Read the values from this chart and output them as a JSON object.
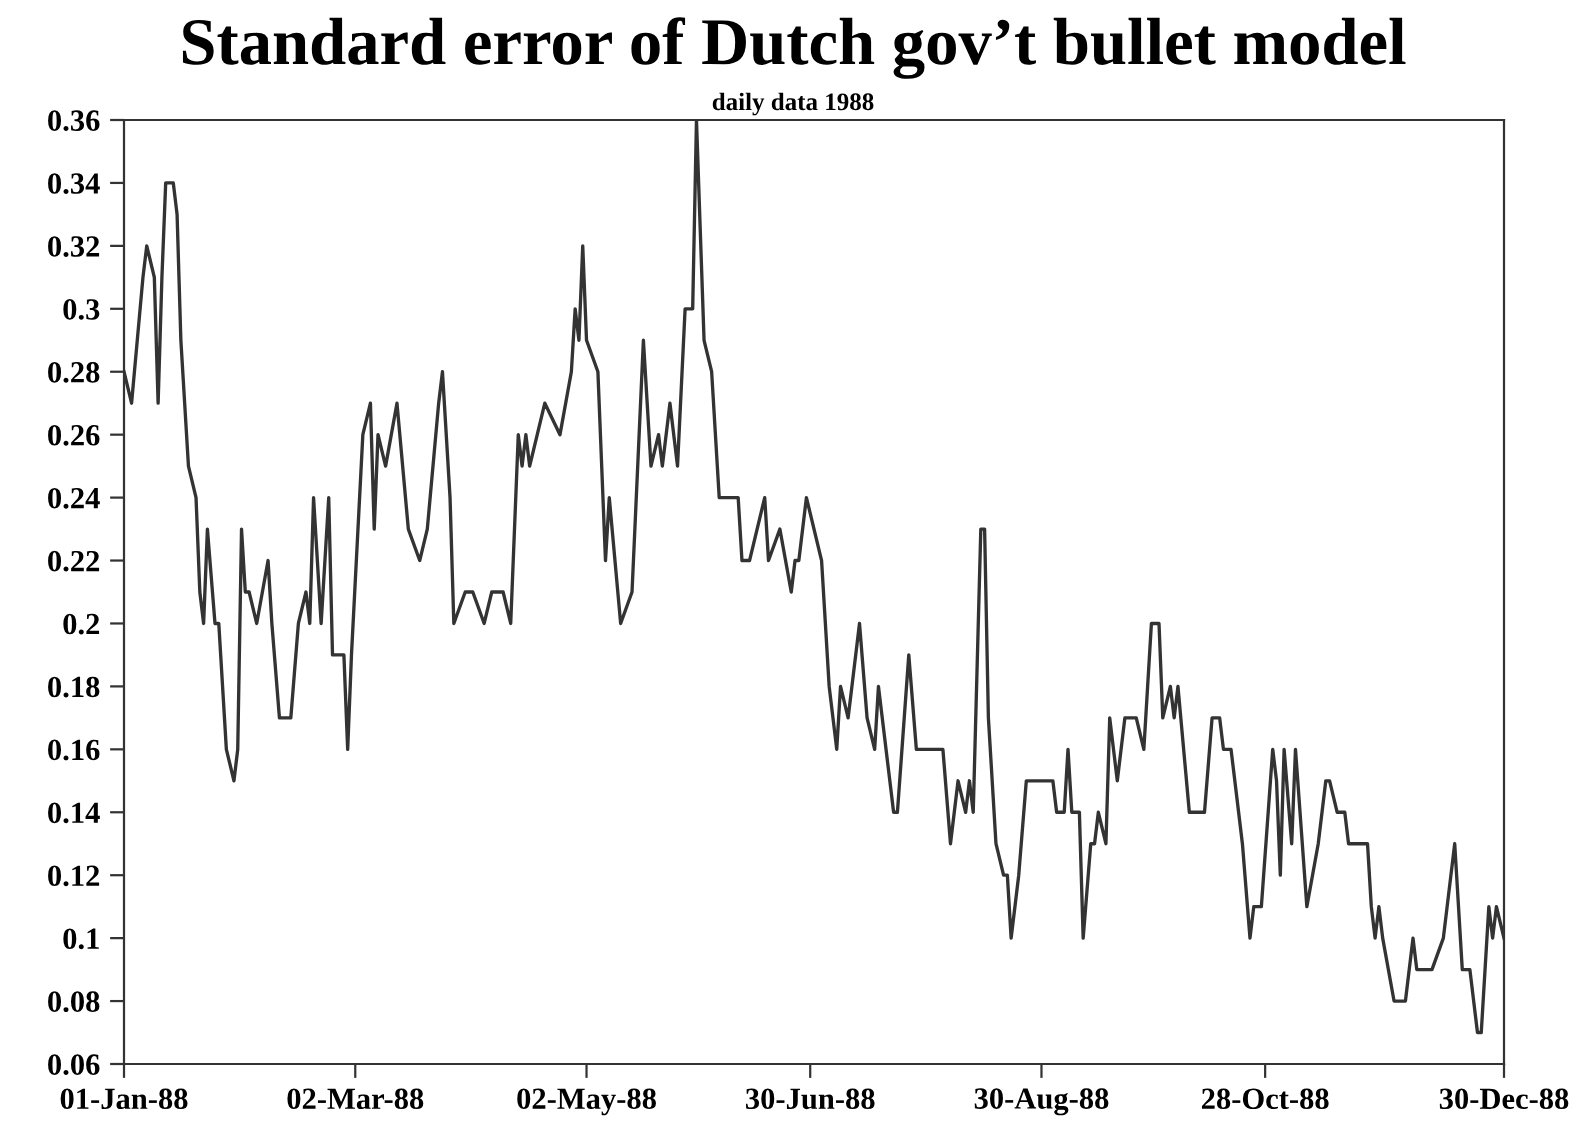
{
  "chart_data": {
    "type": "line",
    "title": "Standard error of Dutch gov’t bullet model",
    "subtitle": "daily data 1988",
    "xlim": [
      "1988-01-01",
      "1988-12-30"
    ],
    "xticks": [
      {
        "value": "1988-01-01",
        "label": "01-Jan-88"
      },
      {
        "value": "1988-03-02",
        "label": "02-Mar-88"
      },
      {
        "value": "1988-05-02",
        "label": "02-May-88"
      },
      {
        "value": "1988-06-30",
        "label": "30-Jun-88"
      },
      {
        "value": "1988-08-30",
        "label": "30-Aug-88"
      },
      {
        "value": "1988-10-28",
        "label": "28-Oct-88"
      },
      {
        "value": "1988-12-30",
        "label": "30-Dec-88"
      }
    ],
    "ylim": [
      0.06,
      0.36
    ],
    "yticks": [
      0.06,
      0.08,
      0.1,
      0.12,
      0.14,
      0.16,
      0.18,
      0.2,
      0.22,
      0.24,
      0.26,
      0.28,
      0.3,
      0.32,
      0.34,
      0.36
    ],
    "grid": false,
    "marker": "none",
    "line_style": "solid",
    "x": [
      "1988-01-01",
      "1988-01-03",
      "1988-01-06",
      "1988-01-07",
      "1988-01-09",
      "1988-01-10",
      "1988-01-11",
      "1988-01-12",
      "1988-01-14",
      "1988-01-15",
      "1988-01-16",
      "1988-01-18",
      "1988-01-20",
      "1988-01-21",
      "1988-01-22",
      "1988-01-23",
      "1988-01-25",
      "1988-01-26",
      "1988-01-28",
      "1988-01-30",
      "1988-01-31",
      "1988-02-01",
      "1988-02-02",
      "1988-02-03",
      "1988-02-05",
      "1988-02-08",
      "1988-02-09",
      "1988-02-11",
      "1988-02-14",
      "1988-02-16",
      "1988-02-18",
      "1988-02-19",
      "1988-02-20",
      "1988-02-22",
      "1988-02-24",
      "1988-02-25",
      "1988-02-28",
      "1988-02-29",
      "1988-03-01",
      "1988-03-04",
      "1988-03-06",
      "1988-03-07",
      "1988-03-08",
      "1988-03-10",
      "1988-03-13",
      "1988-03-16",
      "1988-03-19",
      "1988-03-21",
      "1988-03-24",
      "1988-03-25",
      "1988-03-27",
      "1988-03-28",
      "1988-03-31",
      "1988-04-02",
      "1988-04-05",
      "1988-04-07",
      "1988-04-10",
      "1988-04-12",
      "1988-04-14",
      "1988-04-15",
      "1988-04-16",
      "1988-04-17",
      "1988-04-19",
      "1988-04-21",
      "1988-04-25",
      "1988-04-28",
      "1988-04-29",
      "1988-04-30",
      "1988-05-01",
      "1988-05-02",
      "1988-05-05",
      "1988-05-07",
      "1988-05-08",
      "1988-05-11",
      "1988-05-14",
      "1988-05-17",
      "1988-05-19",
      "1988-05-21",
      "1988-05-22",
      "1988-05-24",
      "1988-05-26",
      "1988-05-28",
      "1988-05-30",
      "1988-05-31",
      "1988-06-02",
      "1988-06-04",
      "1988-06-06",
      "1988-06-11",
      "1988-06-12",
      "1988-06-14",
      "1988-06-18",
      "1988-06-19",
      "1988-06-22",
      "1988-06-25",
      "1988-06-26",
      "1988-06-27",
      "1988-06-29",
      "1988-07-03",
      "1988-07-05",
      "1988-07-07",
      "1988-07-08",
      "1988-07-10",
      "1988-07-13",
      "1988-07-15",
      "1988-07-17",
      "1988-07-18",
      "1988-07-22",
      "1988-07-23",
      "1988-07-26",
      "1988-07-28",
      "1988-08-03",
      "1988-08-04",
      "1988-08-06",
      "1988-08-08",
      "1988-08-10",
      "1988-08-11",
      "1988-08-12",
      "1988-08-14",
      "1988-08-15",
      "1988-08-16",
      "1988-08-18",
      "1988-08-20",
      "1988-08-21",
      "1988-08-22",
      "1988-08-24",
      "1988-08-26",
      "1988-09-02",
      "1988-09-03",
      "1988-09-05",
      "1988-09-06",
      "1988-09-07",
      "1988-09-09",
      "1988-09-10",
      "1988-09-12",
      "1988-09-13",
      "1988-09-14",
      "1988-09-16",
      "1988-09-17",
      "1988-09-19",
      "1988-09-21",
      "1988-09-24",
      "1988-09-26",
      "1988-09-27",
      "1988-09-28",
      "1988-09-30",
      "1988-10-01",
      "1988-10-03",
      "1988-10-04",
      "1988-10-05",
      "1988-10-08",
      "1988-10-12",
      "1988-10-14",
      "1988-10-16",
      "1988-10-17",
      "1988-10-19",
      "1988-10-21",
      "1988-10-22",
      "1988-10-24",
      "1988-10-25",
      "1988-10-27",
      "1988-10-30",
      "1988-10-31",
      "1988-11-01",
      "1988-11-02",
      "1988-11-04",
      "1988-11-05",
      "1988-11-08",
      "1988-11-11",
      "1988-11-13",
      "1988-11-14",
      "1988-11-16",
      "1988-11-18",
      "1988-11-19",
      "1988-11-24",
      "1988-11-25",
      "1988-11-26",
      "1988-11-27",
      "1988-11-28",
      "1988-12-01",
      "1988-12-04",
      "1988-12-06",
      "1988-12-07",
      "1988-12-11",
      "1988-12-14",
      "1988-12-15",
      "1988-12-17",
      "1988-12-19",
      "1988-12-21",
      "1988-12-23",
      "1988-12-24",
      "1988-12-26",
      "1988-12-27",
      "1988-12-28",
      "1988-12-30"
    ],
    "series": [
      {
        "color": "#333333",
        "values": [
          0.28,
          0.27,
          0.31,
          0.32,
          0.31,
          0.27,
          0.31,
          0.34,
          0.34,
          0.33,
          0.29,
          0.25,
          0.24,
          0.21,
          0.2,
          0.23,
          0.2,
          0.2,
          0.16,
          0.15,
          0.16,
          0.23,
          0.21,
          0.21,
          0.2,
          0.22,
          0.2,
          0.17,
          0.17,
          0.2,
          0.21,
          0.2,
          0.24,
          0.2,
          0.24,
          0.19,
          0.19,
          0.16,
          0.19,
          0.26,
          0.27,
          0.23,
          0.26,
          0.25,
          0.27,
          0.23,
          0.22,
          0.23,
          0.27,
          0.28,
          0.24,
          0.2,
          0.21,
          0.21,
          0.2,
          0.21,
          0.21,
          0.2,
          0.26,
          0.25,
          0.26,
          0.25,
          0.26,
          0.27,
          0.26,
          0.28,
          0.3,
          0.29,
          0.32,
          0.29,
          0.28,
          0.22,
          0.24,
          0.2,
          0.21,
          0.29,
          0.25,
          0.26,
          0.25,
          0.27,
          0.25,
          0.3,
          0.3,
          0.36,
          0.29,
          0.28,
          0.24,
          0.24,
          0.22,
          0.22,
          0.24,
          0.22,
          0.23,
          0.21,
          0.22,
          0.22,
          0.24,
          0.22,
          0.18,
          0.16,
          0.18,
          0.17,
          0.2,
          0.17,
          0.16,
          0.18,
          0.14,
          0.14,
          0.19,
          0.16,
          0.16,
          0.16,
          0.13,
          0.15,
          0.14,
          0.15,
          0.14,
          0.23,
          0.23,
          0.17,
          0.13,
          0.12,
          0.12,
          0.1,
          0.12,
          0.15,
          0.15,
          0.14,
          0.14,
          0.16,
          0.14,
          0.14,
          0.1,
          0.13,
          0.13,
          0.14,
          0.13,
          0.17,
          0.15,
          0.17,
          0.17,
          0.16,
          0.18,
          0.2,
          0.2,
          0.17,
          0.18,
          0.17,
          0.18,
          0.14,
          0.14,
          0.17,
          0.17,
          0.16,
          0.16,
          0.14,
          0.13,
          0.1,
          0.11,
          0.11,
          0.16,
          0.15,
          0.12,
          0.16,
          0.13,
          0.16,
          0.11,
          0.13,
          0.15,
          0.15,
          0.14,
          0.14,
          0.13,
          0.13,
          0.11,
          0.1,
          0.11,
          0.1,
          0.08,
          0.08,
          0.1,
          0.09,
          0.09,
          0.1,
          0.11,
          0.13,
          0.09,
          0.09,
          0.07,
          0.07,
          0.11,
          0.1,
          0.11,
          0.1
        ]
      }
    ]
  }
}
